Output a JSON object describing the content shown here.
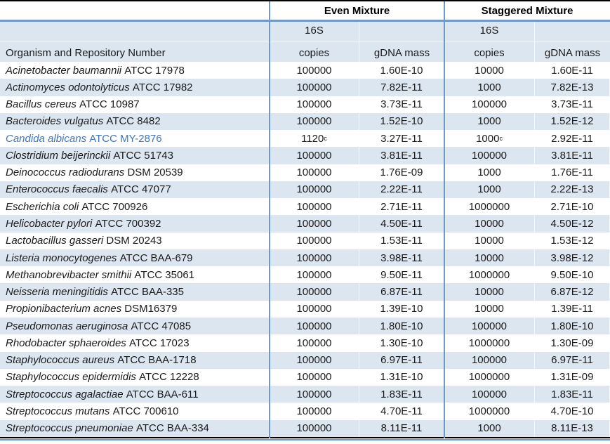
{
  "header": {
    "group_even": "Even Mixture",
    "group_staggered": "Staggered Mixture",
    "organism_col": "Organism and Repository Number",
    "copies_line1": "16S",
    "copies_line2": "copies",
    "gdna_label": "gDNA mass"
  },
  "colors": {
    "stripe_blue": "#dce6f1",
    "grid_blue": "#6f9ac8",
    "top_bottom_border": "#000000",
    "highlight_organism_text": "#4076b8",
    "body_text": "#1a1a1a"
  },
  "rows": [
    {
      "species": "Acinetobacter baumannii",
      "repo": "ATCC 17978",
      "even_copies": "100000",
      "even_copies_sup": "",
      "even_gdna": "1.60E-10",
      "stag_copies": "10000",
      "stag_copies_sup": "",
      "stag_gdna": "1.60E-11",
      "highlight": false
    },
    {
      "species": "Actinomyces odontolyticus",
      "repo": "ATCC 17982",
      "even_copies": "100000",
      "even_copies_sup": "",
      "even_gdna": "7.82E-11",
      "stag_copies": "1000",
      "stag_copies_sup": "",
      "stag_gdna": "7.82E-13",
      "highlight": false
    },
    {
      "species": "Bacillus cereus",
      "repo": "ATCC 10987",
      "even_copies": "100000",
      "even_copies_sup": "",
      "even_gdna": "3.73E-11",
      "stag_copies": "100000",
      "stag_copies_sup": "",
      "stag_gdna": "3.73E-11",
      "highlight": false
    },
    {
      "species": "Bacteroides vulgatus",
      "repo": "ATCC 8482",
      "even_copies": "100000",
      "even_copies_sup": "",
      "even_gdna": "1.52E-10",
      "stag_copies": "1000",
      "stag_copies_sup": "",
      "stag_gdna": "1.52E-12",
      "highlight": false
    },
    {
      "species": "Candida albicans",
      "repo": "ATCC MY-2876",
      "even_copies": "1120",
      "even_copies_sup": "c",
      "even_gdna": "3.27E-11",
      "stag_copies": "1000",
      "stag_copies_sup": "c",
      "stag_gdna": "2.92E-11",
      "highlight": true
    },
    {
      "species": "Clostridium beijerinckii",
      "repo": "ATCC 51743",
      "even_copies": "100000",
      "even_copies_sup": "",
      "even_gdna": "3.81E-11",
      "stag_copies": "100000",
      "stag_copies_sup": "",
      "stag_gdna": "3.81E-11",
      "highlight": false
    },
    {
      "species": "Deinococcus radiodurans",
      "repo": "DSM 20539",
      "even_copies": "100000",
      "even_copies_sup": "",
      "even_gdna": "1.76E-09",
      "stag_copies": "1000",
      "stag_copies_sup": "",
      "stag_gdna": "1.76E-11",
      "highlight": false
    },
    {
      "species": "Enterococcus faecalis",
      "repo": "ATCC 47077",
      "even_copies": "100000",
      "even_copies_sup": "",
      "even_gdna": "2.22E-11",
      "stag_copies": "1000",
      "stag_copies_sup": "",
      "stag_gdna": "2.22E-13",
      "highlight": false
    },
    {
      "species": "Escherichia coli",
      "repo": "ATCC 700926",
      "even_copies": "100000",
      "even_copies_sup": "",
      "even_gdna": "2.71E-11",
      "stag_copies": "1000000",
      "stag_copies_sup": "",
      "stag_gdna": "2.71E-10",
      "highlight": false
    },
    {
      "species": "Helicobacter pylori",
      "repo": "ATCC 700392",
      "even_copies": "100000",
      "even_copies_sup": "",
      "even_gdna": "4.50E-11",
      "stag_copies": "10000",
      "stag_copies_sup": "",
      "stag_gdna": "4.50E-12",
      "highlight": false
    },
    {
      "species": "Lactobacillus gasseri",
      "repo": "DSM 20243",
      "even_copies": "100000",
      "even_copies_sup": "",
      "even_gdna": "1.53E-11",
      "stag_copies": "10000",
      "stag_copies_sup": "",
      "stag_gdna": "1.53E-12",
      "highlight": false
    },
    {
      "species": "Listeria monocytogenes",
      "repo": "ATCC BAA-679",
      "even_copies": "100000",
      "even_copies_sup": "",
      "even_gdna": "3.98E-11",
      "stag_copies": "10000",
      "stag_copies_sup": "",
      "stag_gdna": "3.98E-12",
      "highlight": false
    },
    {
      "species": "Methanobrevibacter smithii",
      "repo": "ATCC 35061",
      "even_copies": "100000",
      "even_copies_sup": "",
      "even_gdna": "9.50E-11",
      "stag_copies": "1000000",
      "stag_copies_sup": "",
      "stag_gdna": "9.50E-10",
      "highlight": false
    },
    {
      "species": "Neisseria meningitidis",
      "repo": "ATCC BAA-335",
      "even_copies": "100000",
      "even_copies_sup": "",
      "even_gdna": "6.87E-11",
      "stag_copies": "10000",
      "stag_copies_sup": "",
      "stag_gdna": "6.87E-12",
      "highlight": false
    },
    {
      "species": "Propionibacterium acnes",
      "repo": "DSM16379",
      "even_copies": "100000",
      "even_copies_sup": "",
      "even_gdna": "1.39E-10",
      "stag_copies": "10000",
      "stag_copies_sup": "",
      "stag_gdna": "1.39E-11",
      "highlight": false
    },
    {
      "species": "Pseudomonas aeruginosa",
      "repo": "ATCC 47085",
      "even_copies": "100000",
      "even_copies_sup": "",
      "even_gdna": "1.80E-10",
      "stag_copies": "100000",
      "stag_copies_sup": "",
      "stag_gdna": "1.80E-10",
      "highlight": false
    },
    {
      "species": "Rhodobacter sphaeroides",
      "repo": "ATCC 17023",
      "even_copies": "100000",
      "even_copies_sup": "",
      "even_gdna": "1.30E-10",
      "stag_copies": "1000000",
      "stag_copies_sup": "",
      "stag_gdna": "1.30E-09",
      "highlight": false
    },
    {
      "species": "Staphylococcus aureus",
      "repo": "ATCC BAA-1718",
      "even_copies": "100000",
      "even_copies_sup": "",
      "even_gdna": "6.97E-11",
      "stag_copies": "100000",
      "stag_copies_sup": "",
      "stag_gdna": "6.97E-11",
      "highlight": false
    },
    {
      "species": "Staphylococcus epidermidis",
      "repo": "ATCC 12228",
      "even_copies": "100000",
      "even_copies_sup": "",
      "even_gdna": "1.31E-10",
      "stag_copies": "1000000",
      "stag_copies_sup": "",
      "stag_gdna": "1.31E-09",
      "highlight": false
    },
    {
      "species": "Streptococcus agalactiae",
      "repo": "ATCC BAA-611",
      "even_copies": "100000",
      "even_copies_sup": "",
      "even_gdna": "1.83E-11",
      "stag_copies": "100000",
      "stag_copies_sup": "",
      "stag_gdna": "1.83E-11",
      "highlight": false
    },
    {
      "species": "Streptococcus mutans",
      "repo": "ATCC 700610",
      "even_copies": "100000",
      "even_copies_sup": "",
      "even_gdna": "4.70E-11",
      "stag_copies": "1000000",
      "stag_copies_sup": "",
      "stag_gdna": "4.70E-10",
      "highlight": false
    },
    {
      "species": "Streptococcus pneumoniae",
      "repo": "ATCC BAA-334",
      "even_copies": "100000",
      "even_copies_sup": "",
      "even_gdna": "8.11E-11",
      "stag_copies": "1000",
      "stag_copies_sup": "",
      "stag_gdna": "8.11E-13",
      "highlight": false
    }
  ]
}
